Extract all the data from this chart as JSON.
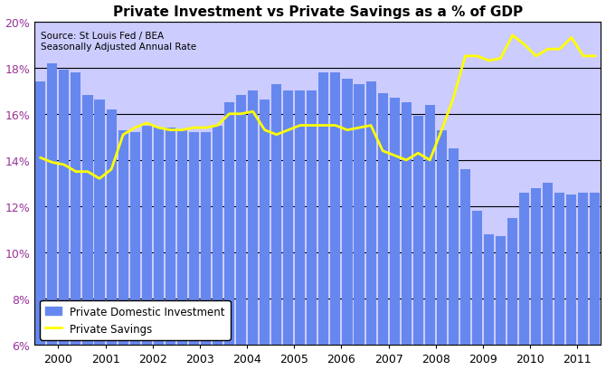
{
  "title": "Private Investment vs Private Savings as a % of GDP",
  "source_text": "Source: St Louis Fed / BEA\nSeasonally Adjusted Annual Rate",
  "bar_color": "#6688EE",
  "line_color": "#FFFF00",
  "plot_bg_color": "#CCCCFF",
  "fig_bg_color": "#FFFFFF",
  "ylim": [
    6,
    20
  ],
  "yticks": [
    6,
    8,
    10,
    12,
    14,
    16,
    18,
    20
  ],
  "ytick_labels": [
    "6%",
    "8%",
    "10%",
    "12%",
    "14%",
    "16%",
    "18%",
    "20%"
  ],
  "investment": [
    17.4,
    18.2,
    17.9,
    17.8,
    16.8,
    16.6,
    16.2,
    15.3,
    15.2,
    15.5,
    15.4,
    15.4,
    15.3,
    15.2,
    15.2,
    15.5,
    16.5,
    16.8,
    17.0,
    16.6,
    17.3,
    17.0,
    17.0,
    17.0,
    17.8,
    17.8,
    17.5,
    17.3,
    17.4,
    16.9,
    16.7,
    16.5,
    15.9,
    16.4,
    15.3,
    14.5,
    13.6,
    11.8,
    10.8,
    10.7,
    11.5,
    12.6,
    12.8,
    13.0,
    12.6,
    12.5,
    12.6,
    12.6
  ],
  "savings": [
    14.1,
    13.9,
    13.8,
    13.5,
    13.5,
    13.2,
    13.6,
    15.1,
    15.4,
    15.6,
    15.4,
    15.3,
    15.3,
    15.4,
    15.4,
    15.5,
    16.0,
    16.0,
    16.1,
    15.3,
    15.1,
    15.3,
    15.5,
    15.5,
    15.5,
    15.5,
    15.3,
    15.4,
    15.5,
    14.4,
    14.2,
    14.0,
    14.3,
    14.0,
    15.3,
    16.7,
    18.5,
    18.5,
    18.3,
    18.4,
    19.4,
    19.0,
    18.5,
    18.8,
    18.8,
    19.3,
    18.5,
    18.5
  ],
  "xtick_labels": [
    "2000",
    "2001",
    "2002",
    "2003",
    "2004",
    "2005",
    "2006",
    "2007",
    "2008",
    "2009",
    "2010",
    "2011"
  ],
  "legend_labels": [
    "Private Domestic Investment",
    "Private Savings"
  ],
  "ytick_color": "#993399",
  "grid_color": "#000000",
  "title_fontsize": 11
}
